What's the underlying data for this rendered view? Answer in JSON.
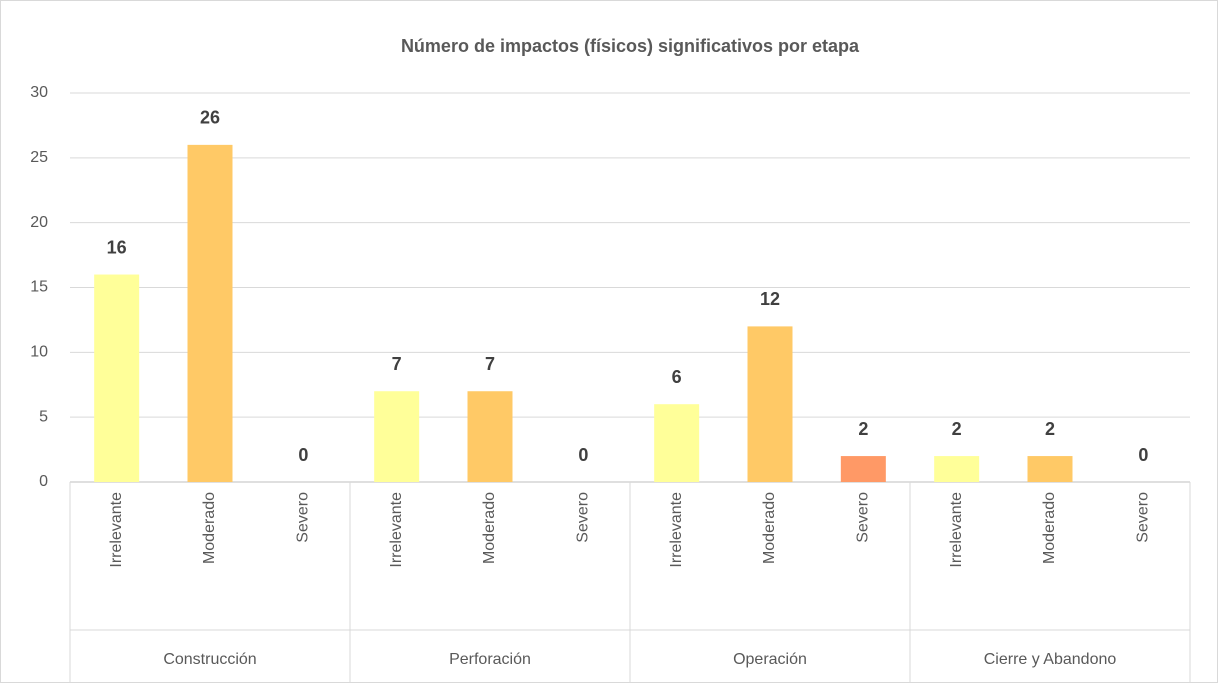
{
  "chart_data": {
    "type": "bar",
    "title": "Número de impactos (físicos) significativos por etapa",
    "groups": [
      "Construcción",
      "Perforación",
      "Operación",
      "Cierre y Abandono"
    ],
    "categories": [
      "Irrelevante",
      "Moderado",
      "Severo",
      "Irrelevante",
      "Moderado",
      "Severo",
      "Irrelevante",
      "Moderado",
      "Severo",
      "Irrelevante",
      "Moderado",
      "Severo"
    ],
    "values": [
      16,
      26,
      0,
      7,
      7,
      0,
      6,
      12,
      2,
      2,
      2,
      0
    ],
    "colors": [
      "#ffff99",
      "#ffc966",
      "#ff9966",
      "#ffff99",
      "#ffc966",
      "#ff9966",
      "#ffff99",
      "#ffc966",
      "#ff9966",
      "#ffff99",
      "#ffc966",
      "#ff9966"
    ],
    "ylim": [
      0,
      30
    ],
    "yticks": [
      0,
      5,
      10,
      15,
      20,
      25,
      30
    ],
    "grid": true
  }
}
